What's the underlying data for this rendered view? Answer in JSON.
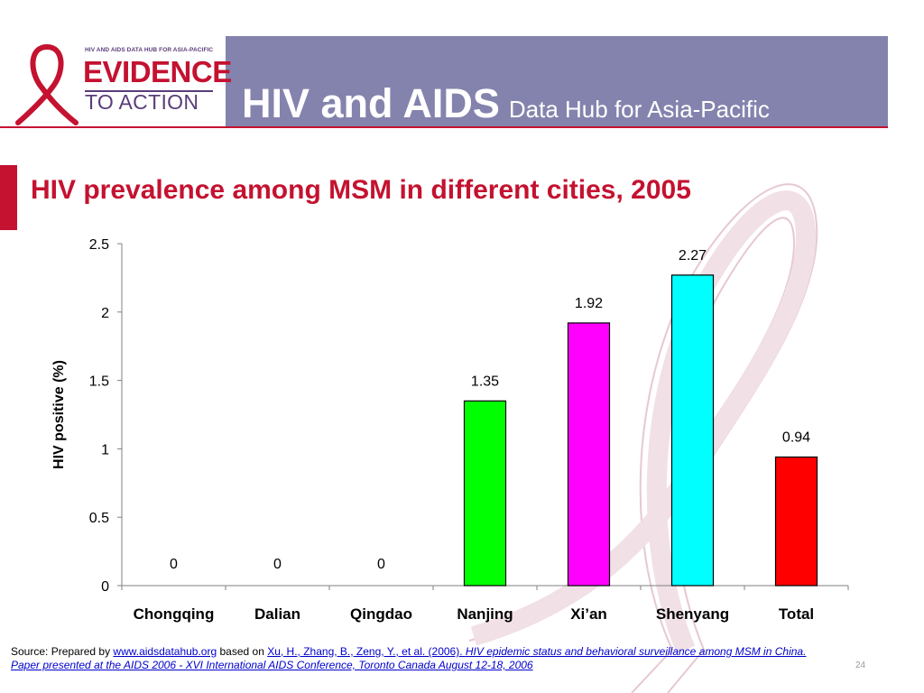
{
  "header": {
    "logo_supertitle": "HIV AND AIDS DATA HUB FOR ASIA-PACIFIC",
    "logo_line1": "EVIDENCE",
    "logo_line2": "TO ACTION",
    "title_main": "HIV and AIDS",
    "title_sub": "Data Hub for Asia-Pacific"
  },
  "slide_title": "HIV prevalence among MSM in different cities, 2005",
  "chart_data": {
    "type": "bar",
    "categories": [
      "Chongqing",
      "Dalian",
      "Qingdao",
      "Nanjing",
      "Xi’an",
      "Shenyang",
      "Total"
    ],
    "values": [
      0,
      0,
      0,
      1.35,
      1.92,
      2.27,
      0.94
    ],
    "value_labels": [
      "0",
      "0",
      "0",
      "1.35",
      "1.92",
      "2.27",
      "0.94"
    ],
    "colors": [
      "#00ff00",
      "#00ff00",
      "#00ff00",
      "#00ff00",
      "#ff00ff",
      "#00ffff",
      "#ff0000"
    ],
    "ylabel": "HIV positive (%)",
    "xlabel": "",
    "ylim": [
      0,
      2.5
    ],
    "yticks": [
      0,
      0.5,
      1,
      1.5,
      2,
      2.5
    ],
    "ytick_labels": [
      "0",
      "0.5",
      "1",
      "1.5",
      "2",
      "2.5"
    ],
    "grid": false
  },
  "footer": {
    "source_prefix": "Source: Prepared by ",
    "source_link": "www.aidsdatahub.org",
    "based_on": "  based on ",
    "citation_plain": "Xu, H., Zhang, B., Zeng, Y., et al. (2006). ",
    "citation_italic": "HIV epidemic status and behavioral surveillance among MSM in China. Paper presented at the AIDS 2006 - XVI International AIDS Conference, Toronto Canada August 12-18, 2006"
  },
  "page_number": "24"
}
